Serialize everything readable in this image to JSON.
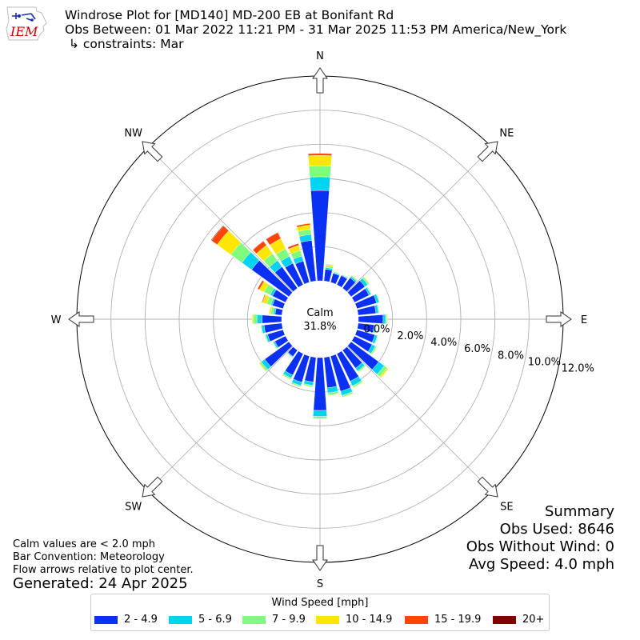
{
  "header": {
    "title": "Windrose Plot for [MD140] MD-200 EB at Bonifant Rd",
    "obs_between": "Obs Between: 01 Mar 2022 11:21 PM - 31 Mar 2025 11:53 PM America/New_York",
    "constraints": "↳ constraints: Mar"
  },
  "logo": {
    "text": "IEM",
    "color": "#cc0000"
  },
  "notes": {
    "calm_note": "Calm values are < 2.0 mph",
    "bar_convention": "Bar Convention: Meteorology",
    "flow_note": "Flow arrows relative to plot center.",
    "generated": "Generated: 24 Apr 2025"
  },
  "summary": {
    "title": "Summary",
    "obs_used": "Obs Used: 8646",
    "obs_without_wind": "Obs Without Wind: 0",
    "avg_speed": "Avg Speed: 4.0 mph"
  },
  "chart_data": {
    "type": "windrose",
    "calm_label": "Calm",
    "calm_value": "31.8%",
    "calm_percent": 31.8,
    "direction_labels": [
      "N",
      "NE",
      "E",
      "SE",
      "S",
      "SW",
      "W",
      "NW"
    ],
    "radial_tick_labels": [
      "0.0%",
      "2.0%",
      "4.0%",
      "6.0%",
      "8.0%",
      "10.0%",
      "12.0%"
    ],
    "radial_max_percent": 12,
    "legend_title": "Wind Speed [mph]",
    "bins": [
      {
        "label": "2 - 4.9",
        "color": "#0a30f4"
      },
      {
        "label": "5 - 6.9",
        "color": "#00d2f2"
      },
      {
        "label": "7 - 9.9",
        "color": "#7dfc7d"
      },
      {
        "label": "10 - 14.9",
        "color": "#ffe600"
      },
      {
        "label": "15 - 19.9",
        "color": "#ff4500"
      },
      {
        "label": "20+",
        "color": "#800000"
      }
    ],
    "sectors": [
      {
        "dir": 0,
        "values": [
          5.3,
          0.8,
          0.65,
          0.6,
          0.12,
          0
        ]
      },
      {
        "dir": 10,
        "values": [
          0.7,
          0.1,
          0.1,
          0.08,
          0.02,
          0
        ]
      },
      {
        "dir": 20,
        "values": [
          0.55,
          0.06,
          0.04,
          0.03,
          0,
          0
        ]
      },
      {
        "dir": 30,
        "values": [
          0.6,
          0.05,
          0.03,
          0.02,
          0,
          0
        ]
      },
      {
        "dir": 40,
        "values": [
          0.75,
          0.1,
          0.06,
          0.03,
          0,
          0
        ]
      },
      {
        "dir": 50,
        "values": [
          1.0,
          0.2,
          0.1,
          0.04,
          0,
          0
        ]
      },
      {
        "dir": 60,
        "values": [
          0.95,
          0.12,
          0.05,
          0.02,
          0,
          0
        ]
      },
      {
        "dir": 70,
        "values": [
          1.2,
          0.15,
          0.05,
          0.02,
          0,
          0
        ]
      },
      {
        "dir": 80,
        "values": [
          1.05,
          0.15,
          0.05,
          0.02,
          0,
          0
        ]
      },
      {
        "dir": 90,
        "values": [
          1.45,
          0.15,
          0.08,
          0.03,
          0,
          0
        ]
      },
      {
        "dir": 100,
        "values": [
          0.95,
          0.1,
          0.05,
          0.02,
          0,
          0
        ]
      },
      {
        "dir": 110,
        "values": [
          1.1,
          0.15,
          0.05,
          0.02,
          0,
          0
        ]
      },
      {
        "dir": 120,
        "values": [
          1.15,
          0.2,
          0.08,
          0.03,
          0,
          0
        ]
      },
      {
        "dir": 130,
        "values": [
          2.0,
          0.4,
          0.2,
          0.1,
          0,
          0
        ]
      },
      {
        "dir": 140,
        "values": [
          1.3,
          0.2,
          0.08,
          0.03,
          0,
          0
        ]
      },
      {
        "dir": 150,
        "values": [
          1.8,
          0.3,
          0.1,
          0.03,
          0,
          0
        ]
      },
      {
        "dir": 160,
        "values": [
          2.15,
          0.25,
          0.1,
          0.03,
          0,
          0
        ]
      },
      {
        "dir": 170,
        "values": [
          1.8,
          0.3,
          0.12,
          0.04,
          0,
          0
        ]
      },
      {
        "dir": 180,
        "values": [
          3.1,
          0.35,
          0.12,
          0.04,
          0,
          0
        ]
      },
      {
        "dir": 190,
        "values": [
          1.45,
          0.2,
          0.08,
          0.03,
          0,
          0
        ]
      },
      {
        "dir": 200,
        "values": [
          1.6,
          0.2,
          0.08,
          0.03,
          0,
          0
        ]
      },
      {
        "dir": 210,
        "values": [
          1.4,
          0.2,
          0.08,
          0.03,
          0,
          0
        ]
      },
      {
        "dir": 220,
        "values": [
          0.45,
          0.05,
          0.03,
          0.02,
          0,
          0
        ]
      },
      {
        "dir": 230,
        "values": [
          1.75,
          0.25,
          0.12,
          0.05,
          0,
          0
        ]
      },
      {
        "dir": 240,
        "values": [
          0.7,
          0.1,
          0.04,
          0.02,
          0,
          0
        ]
      },
      {
        "dir": 250,
        "values": [
          0.95,
          0.12,
          0.05,
          0.02,
          0,
          0
        ]
      },
      {
        "dir": 260,
        "values": [
          1.05,
          0.15,
          0.05,
          0.02,
          0,
          0
        ]
      },
      {
        "dir": 270,
        "values": [
          1.15,
          0.3,
          0.2,
          0.08,
          0,
          0
        ]
      },
      {
        "dir": 280,
        "values": [
          0.4,
          0.1,
          0.15,
          0.1,
          0,
          0
        ]
      },
      {
        "dir": 290,
        "values": [
          0.65,
          0.1,
          0.25,
          0.25,
          0.05,
          0
        ]
      },
      {
        "dir": 300,
        "values": [
          0.85,
          0.15,
          0.4,
          0.3,
          0.12,
          0
        ]
      },
      {
        "dir": 310,
        "values": [
          2.7,
          0.7,
          0.8,
          1.0,
          0.4,
          0.04
        ]
      },
      {
        "dir": 320,
        "values": [
          1.55,
          0.45,
          0.5,
          0.6,
          0.3,
          0.02
        ]
      },
      {
        "dir": 330,
        "values": [
          1.4,
          0.45,
          0.5,
          0.65,
          0.4,
          0.02
        ]
      },
      {
        "dir": 340,
        "values": [
          1.3,
          0.3,
          0.35,
          0.3,
          0.12,
          0
        ]
      },
      {
        "dir": 350,
        "values": [
          2.4,
          0.35,
          0.3,
          0.25,
          0.1,
          0
        ]
      }
    ]
  }
}
